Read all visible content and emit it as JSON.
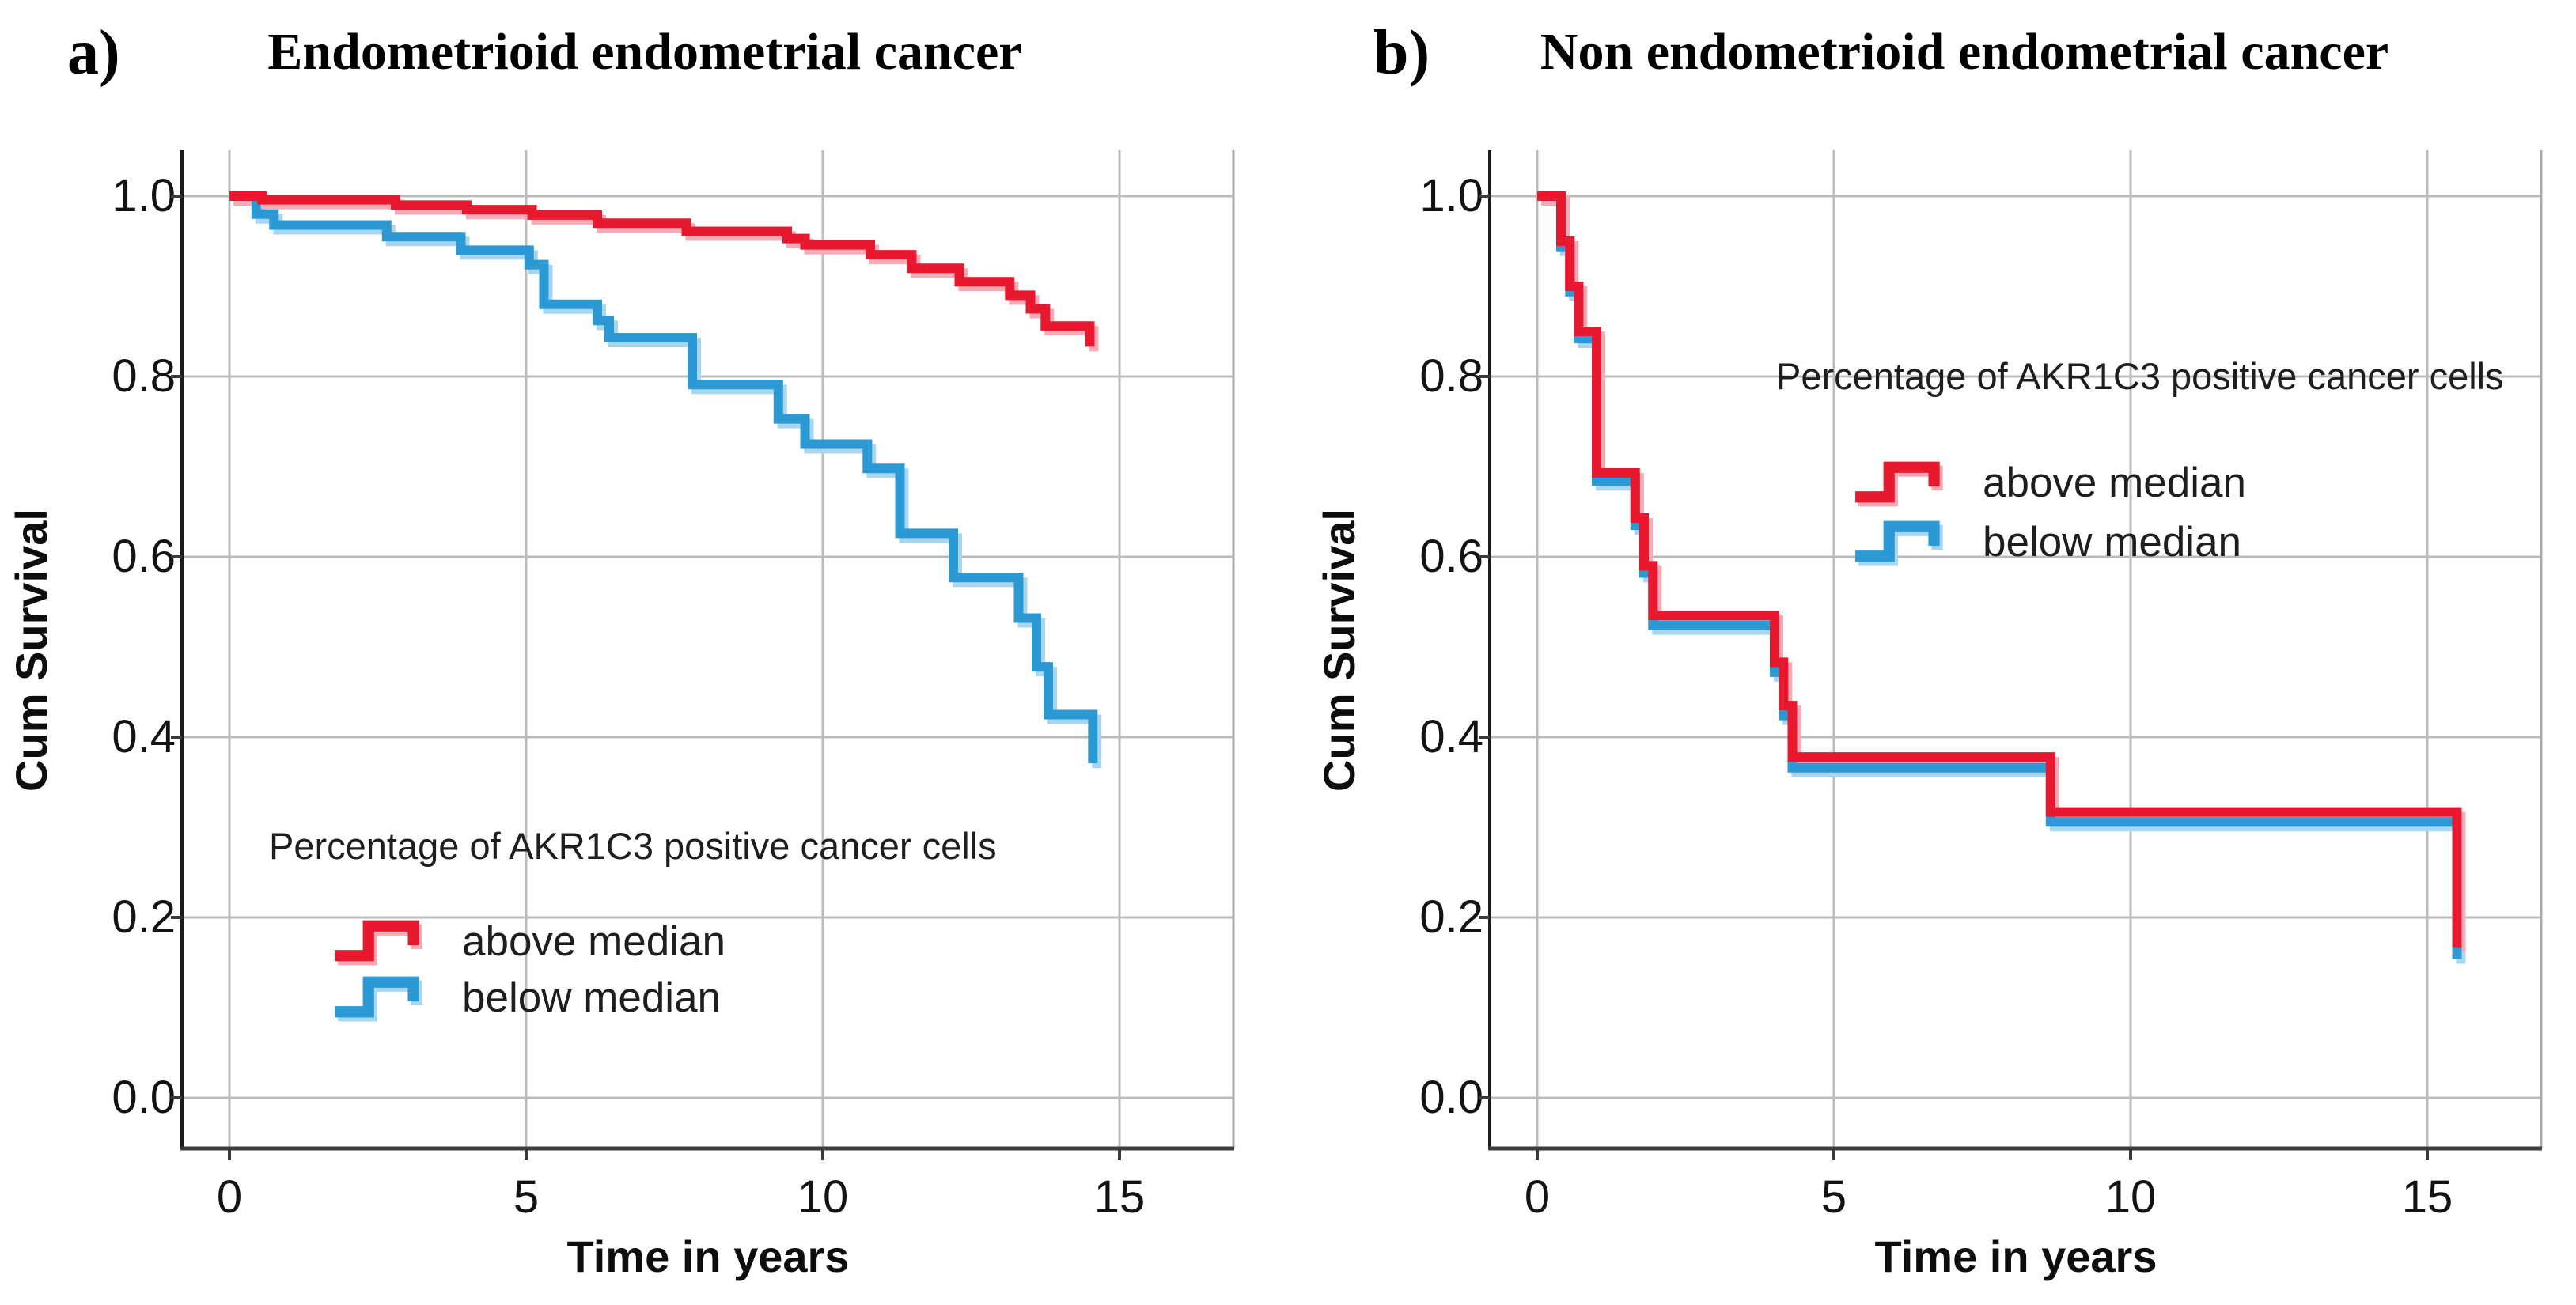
{
  "chart_data": [
    {
      "id": "panel-a",
      "type": "line",
      "subtype": "kaplan-meier-step",
      "panel_label": "a)",
      "title": "Endometrioid endometrial cancer",
      "xlabel": "Time in years",
      "ylabel": "Cum Survival",
      "xlim": [
        -0.8,
        16.9
      ],
      "ylim": [
        -0.06,
        1.05
      ],
      "grid": true,
      "x_ticks": [
        {
          "label": "0",
          "value": 0
        },
        {
          "label": "5",
          "value": 5
        },
        {
          "label": "10",
          "value": 10
        },
        {
          "label": "15",
          "value": 15
        }
      ],
      "y_ticks": [
        {
          "label": "0.0",
          "value": 0.0
        },
        {
          "label": "0.2",
          "value": 0.2
        },
        {
          "label": "0.4",
          "value": 0.4
        },
        {
          "label": "0.6",
          "value": 0.6
        },
        {
          "label": "0.8",
          "value": 0.8
        },
        {
          "label": "1.0",
          "value": 1.0
        }
      ],
      "legend": {
        "title": "Percentage of AKR1C3 positive cancer cells",
        "position": "lower-left-inside",
        "entries": [
          {
            "label": "above median",
            "color": "#e8192f"
          },
          {
            "label": "below median",
            "color": "#2b9ad4"
          }
        ]
      },
      "series": [
        {
          "name": "above median",
          "color": "#e8192f",
          "shadow_color": "#f6aab5",
          "steps": [
            [
              0,
              1.0
            ],
            [
              0.55,
              0.996
            ],
            [
              2.8,
              0.99
            ],
            [
              4.0,
              0.985
            ],
            [
              5.1,
              0.979
            ],
            [
              6.2,
              0.97
            ],
            [
              7.7,
              0.961
            ],
            [
              9.4,
              0.953
            ],
            [
              9.7,
              0.946
            ],
            [
              10.8,
              0.935
            ],
            [
              11.5,
              0.92
            ],
            [
              12.3,
              0.905
            ],
            [
              13.15,
              0.89
            ],
            [
              13.5,
              0.875
            ],
            [
              13.75,
              0.856
            ],
            [
              14.5,
              0.833
            ]
          ]
        },
        {
          "name": "below median",
          "color": "#2b9ad4",
          "shadow_color": "#a9d6ee",
          "steps": [
            [
              0,
              1.0
            ],
            [
              0.45,
              0.98
            ],
            [
              0.75,
              0.968
            ],
            [
              2.65,
              0.955
            ],
            [
              3.9,
              0.94
            ],
            [
              5.05,
              0.924
            ],
            [
              5.3,
              0.88
            ],
            [
              6.2,
              0.862
            ],
            [
              6.4,
              0.843
            ],
            [
              7.8,
              0.791
            ],
            [
              9.25,
              0.753
            ],
            [
              9.7,
              0.725
            ],
            [
              10.75,
              0.698
            ],
            [
              11.3,
              0.626
            ],
            [
              12.2,
              0.577
            ],
            [
              13.3,
              0.532
            ],
            [
              13.6,
              0.478
            ],
            [
              13.8,
              0.425
            ],
            [
              14.55,
              0.371
            ]
          ]
        }
      ]
    },
    {
      "id": "panel-b",
      "type": "line",
      "subtype": "kaplan-meier-step",
      "panel_label": "b)",
      "title": "Non endometrioid endometrial cancer",
      "xlabel": "Time in years",
      "ylabel": "Cum Survival",
      "xlim": [
        -0.8,
        16.9
      ],
      "ylim": [
        -0.06,
        1.05
      ],
      "grid": true,
      "x_ticks": [
        {
          "label": "0",
          "value": 0
        },
        {
          "label": "5",
          "value": 5
        },
        {
          "label": "10",
          "value": 10
        },
        {
          "label": "15",
          "value": 15
        }
      ],
      "y_ticks": [
        {
          "label": "0.0",
          "value": 0.0
        },
        {
          "label": "0.2",
          "value": 0.2
        },
        {
          "label": "0.4",
          "value": 0.4
        },
        {
          "label": "0.6",
          "value": 0.6
        },
        {
          "label": "0.8",
          "value": 0.8
        },
        {
          "label": "1.0",
          "value": 1.0
        }
      ],
      "legend": {
        "title": "Percentage of AKR1C3 positive cancer cells",
        "position": "upper-right-inside",
        "entries": [
          {
            "label": "above median",
            "color": "#e8192f"
          },
          {
            "label": "below median",
            "color": "#2b9ad4"
          }
        ]
      },
      "series": [
        {
          "name": "above median",
          "color": "#e8192f",
          "shadow_color": "#f6aab5",
          "steps": [
            [
              0,
              1.0
            ],
            [
              0.4,
              0.95
            ],
            [
              0.55,
              0.9
            ],
            [
              0.7,
              0.85
            ],
            [
              1.0,
              0.693
            ],
            [
              1.65,
              0.643
            ],
            [
              1.8,
              0.59
            ],
            [
              1.95,
              0.535
            ],
            [
              4.0,
              0.483
            ],
            [
              4.15,
              0.435
            ],
            [
              4.3,
              0.378
            ],
            [
              8.65,
              0.317
            ],
            [
              15.5,
              0.167
            ]
          ]
        },
        {
          "name": "below median",
          "color": "#2b9ad4",
          "shadow_color": "#a9d6ee",
          "steps": [
            [
              0,
              1.0
            ],
            [
              0.4,
              0.944
            ],
            [
              0.55,
              0.894
            ],
            [
              0.7,
              0.842
            ],
            [
              1.0,
              0.684
            ],
            [
              1.65,
              0.635
            ],
            [
              1.8,
              0.582
            ],
            [
              1.95,
              0.524
            ],
            [
              4.0,
              0.472
            ],
            [
              4.15,
              0.424
            ],
            [
              4.3,
              0.366
            ],
            [
              8.65,
              0.306
            ],
            [
              15.5,
              0.154
            ]
          ]
        }
      ]
    }
  ],
  "style": {
    "grid_color": "#bcbcbc",
    "axis_left_color": "#1c1c1c",
    "axis_bottom_color": "#3e3e3e",
    "frame_right_color": "#ababab",
    "tick_color": "#3a3a3a",
    "background": "#ffffff"
  }
}
